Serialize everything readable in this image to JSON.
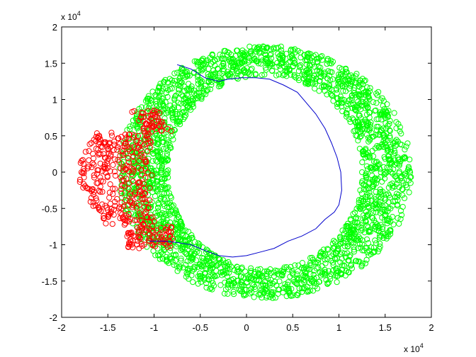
{
  "chart_data": {
    "type": "scatter",
    "title": "",
    "xlabel": "",
    "ylabel": "",
    "xlim": [
      -2,
      2
    ],
    "ylim": [
      -2,
      2
    ],
    "x_ticks": [
      "-2",
      "-1.5",
      "-1",
      "-0.5",
      "0",
      "0.5",
      "1",
      "1.5",
      "2"
    ],
    "y_ticks": [
      "-2",
      "-1.5",
      "-1",
      "-0.5",
      "0",
      "0.5",
      "1",
      "1.5",
      "2"
    ],
    "x_exponent": {
      "base": "x 10",
      "power": "4"
    },
    "y_exponent": {
      "base": "x 10",
      "power": "4"
    },
    "grid": false,
    "legend": "none",
    "series": [
      {
        "marker": "circle-open",
        "color": "#00ff00",
        "region": "annulus",
        "center": [
          0.2,
          0.0
        ],
        "inner_radii": [
          1.0,
          1.3
        ],
        "outer_radii": [
          1.6,
          1.75
        ],
        "approx_count": 2400
      },
      {
        "marker": "circle-open",
        "color": "#ff0000",
        "region": "left-arc-cluster",
        "x_range": [
          -1.85,
          -0.75
        ],
        "y_range": [
          -1.05,
          0.85
        ],
        "approx_count": 450
      },
      {
        "marker": "line",
        "color": "#0000cc",
        "x": [
          -0.75,
          -0.6,
          -0.45,
          -0.3,
          -0.2,
          -0.05,
          0.1,
          0.25,
          0.4,
          0.55,
          0.65,
          0.75,
          0.85,
          0.92,
          0.98,
          1.02,
          1.03,
          1.0,
          0.95,
          0.85,
          0.75,
          0.6,
          0.45,
          0.3,
          0.15,
          0.0,
          -0.15,
          -0.3,
          -0.45,
          -0.6,
          -0.75,
          -0.9,
          -1.05
        ],
        "y": [
          1.48,
          1.42,
          1.3,
          1.25,
          1.28,
          1.3,
          1.3,
          1.28,
          1.2,
          1.1,
          0.95,
          0.8,
          0.6,
          0.4,
          0.2,
          0.0,
          -0.25,
          -0.45,
          -0.55,
          -0.65,
          -0.78,
          -0.88,
          -0.95,
          -1.05,
          -1.1,
          -1.15,
          -1.17,
          -1.15,
          -1.08,
          -1.0,
          -0.97,
          -0.95,
          -0.95
        ]
      }
    ]
  }
}
